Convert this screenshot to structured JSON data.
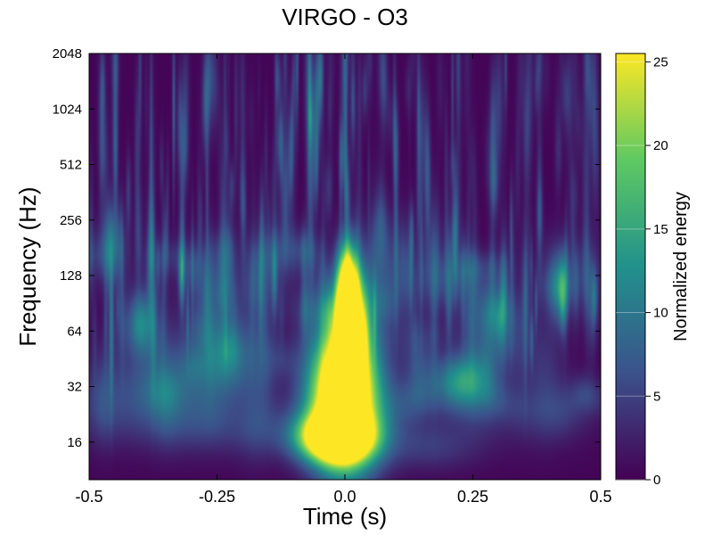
{
  "chart_data": {
    "type": "heatmap",
    "title": "VIRGO - O3",
    "xlabel": "Time (s)",
    "ylabel": "Frequency (Hz)",
    "colorbar_label": "Normalized energy",
    "colormap": "viridis",
    "colormap_stops": [
      "#440154",
      "#3b528b",
      "#21918c",
      "#5ec962",
      "#fde725"
    ],
    "x_scale": "linear",
    "y_scale": "log2",
    "xlim": [
      -0.5,
      0.5
    ],
    "ylim": [
      10,
      2048
    ],
    "clim": [
      0,
      25.5
    ],
    "x_ticks": [
      -0.5,
      -0.25,
      0,
      0.25,
      0.5
    ],
    "x_tick_labels": [
      "-0.5",
      "-0.25",
      "0.0",
      "0.25",
      "0.5"
    ],
    "y_ticks": [
      16,
      32,
      64,
      128,
      256,
      512,
      1024,
      2048
    ],
    "y_tick_labels": [
      "16",
      "32",
      "64",
      "128",
      "256",
      "512",
      "1024",
      "2048"
    ],
    "c_ticks": [
      0,
      5,
      10,
      15,
      20,
      25
    ],
    "c_tick_labels": [
      "0",
      "5",
      "10",
      "15",
      "20",
      "25"
    ],
    "grid": false,
    "features": [
      {
        "time": 0.0,
        "freq": 28,
        "time_width": 0.045,
        "freq_width_oct": 0.9,
        "energy": 40
      },
      {
        "time": 0.01,
        "freq": 70,
        "time_width": 0.02,
        "freq_width_oct": 0.7,
        "energy": 30
      },
      {
        "time": 0.005,
        "freq": 125,
        "time_width": 0.012,
        "freq_width_oct": 0.5,
        "energy": 16
      },
      {
        "time": -0.02,
        "freq": 17,
        "time_width": 0.05,
        "freq_width_oct": 0.3,
        "energy": 32
      },
      {
        "time": 0.23,
        "freq": 34,
        "time_width": 0.035,
        "freq_width_oct": 0.35,
        "energy": 12
      },
      {
        "time": 0.42,
        "freq": 110,
        "time_width": 0.015,
        "freq_width_oct": 0.45,
        "energy": 9
      },
      {
        "time": -0.4,
        "freq": 72,
        "time_width": 0.015,
        "freq_width_oct": 0.4,
        "energy": 7
      },
      {
        "time": -0.45,
        "freq": 200,
        "time_width": 0.012,
        "freq_width_oct": 0.5,
        "energy": 6
      },
      {
        "time": -0.3,
        "freq": 40,
        "time_width": 0.05,
        "freq_width_oct": 0.6,
        "energy": 4
      },
      {
        "time": -0.23,
        "freq": 45,
        "time_width": 0.04,
        "freq_width_oct": 0.5,
        "energy": 5
      },
      {
        "time": 0.16,
        "freq": 15,
        "time_width": 0.07,
        "freq_width_oct": 0.3,
        "energy": 4
      },
      {
        "time": -0.2,
        "freq": 18,
        "time_width": 0.15,
        "freq_width_oct": 0.35,
        "energy": 2.5
      },
      {
        "time": -0.35,
        "freq": 22,
        "time_width": 0.12,
        "freq_width_oct": 0.4,
        "energy": 2.5
      },
      {
        "time": -0.42,
        "freq": 32,
        "time_width": 0.08,
        "freq_width_oct": 0.5,
        "energy": 3
      },
      {
        "time": 0.1,
        "freq": 600,
        "time_width": 0.004,
        "freq_width_oct": 0.6,
        "energy": 5
      },
      {
        "time": 0.07,
        "freq": 230,
        "time_width": 0.01,
        "freq_width_oct": 0.5,
        "energy": 4
      },
      {
        "time": 0.3,
        "freq": 60,
        "time_width": 0.04,
        "freq_width_oct": 0.5,
        "energy": 3
      },
      {
        "time": 0.35,
        "freq": 22,
        "time_width": 0.1,
        "freq_width_oct": 0.4,
        "energy": 2.5
      }
    ]
  }
}
